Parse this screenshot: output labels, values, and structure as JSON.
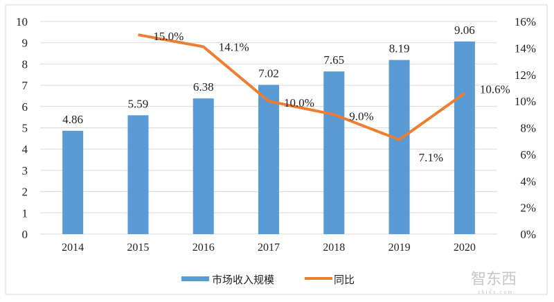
{
  "chart_data": {
    "type": "bar+line",
    "categories": [
      "2014",
      "2015",
      "2016",
      "2017",
      "2018",
      "2019",
      "2020"
    ],
    "series": [
      {
        "name": "市场收入规模",
        "type": "bar",
        "axis": "left",
        "values": [
          4.86,
          5.59,
          6.38,
          7.02,
          7.65,
          8.19,
          9.06
        ],
        "labels": [
          "4.86",
          "5.59",
          "6.38",
          "7.02",
          "7.65",
          "8.19",
          "9.06"
        ],
        "color": "#5B9BD5"
      },
      {
        "name": "同比",
        "type": "line",
        "axis": "right",
        "values": [
          null,
          15.0,
          14.1,
          10.0,
          9.0,
          7.1,
          10.6
        ],
        "labels": [
          "",
          "15.0%",
          "14.1%",
          "10.0%",
          "9.0%",
          "7.1%",
          "10.6%"
        ],
        "color": "#ED7D31"
      }
    ],
    "y_left": {
      "range": [
        0,
        10
      ],
      "ticks": [
        "0",
        "1",
        "2",
        "3",
        "4",
        "5",
        "6",
        "7",
        "8",
        "9",
        "10"
      ]
    },
    "y_right": {
      "range": [
        0,
        16
      ],
      "ticks": [
        "0%",
        "2%",
        "4%",
        "6%",
        "8%",
        "10%",
        "12%",
        "14%",
        "16%"
      ]
    },
    "grid": true,
    "legend": "bottom"
  },
  "watermark": {
    "text": "智东西",
    "sub": "zhidx.com"
  }
}
